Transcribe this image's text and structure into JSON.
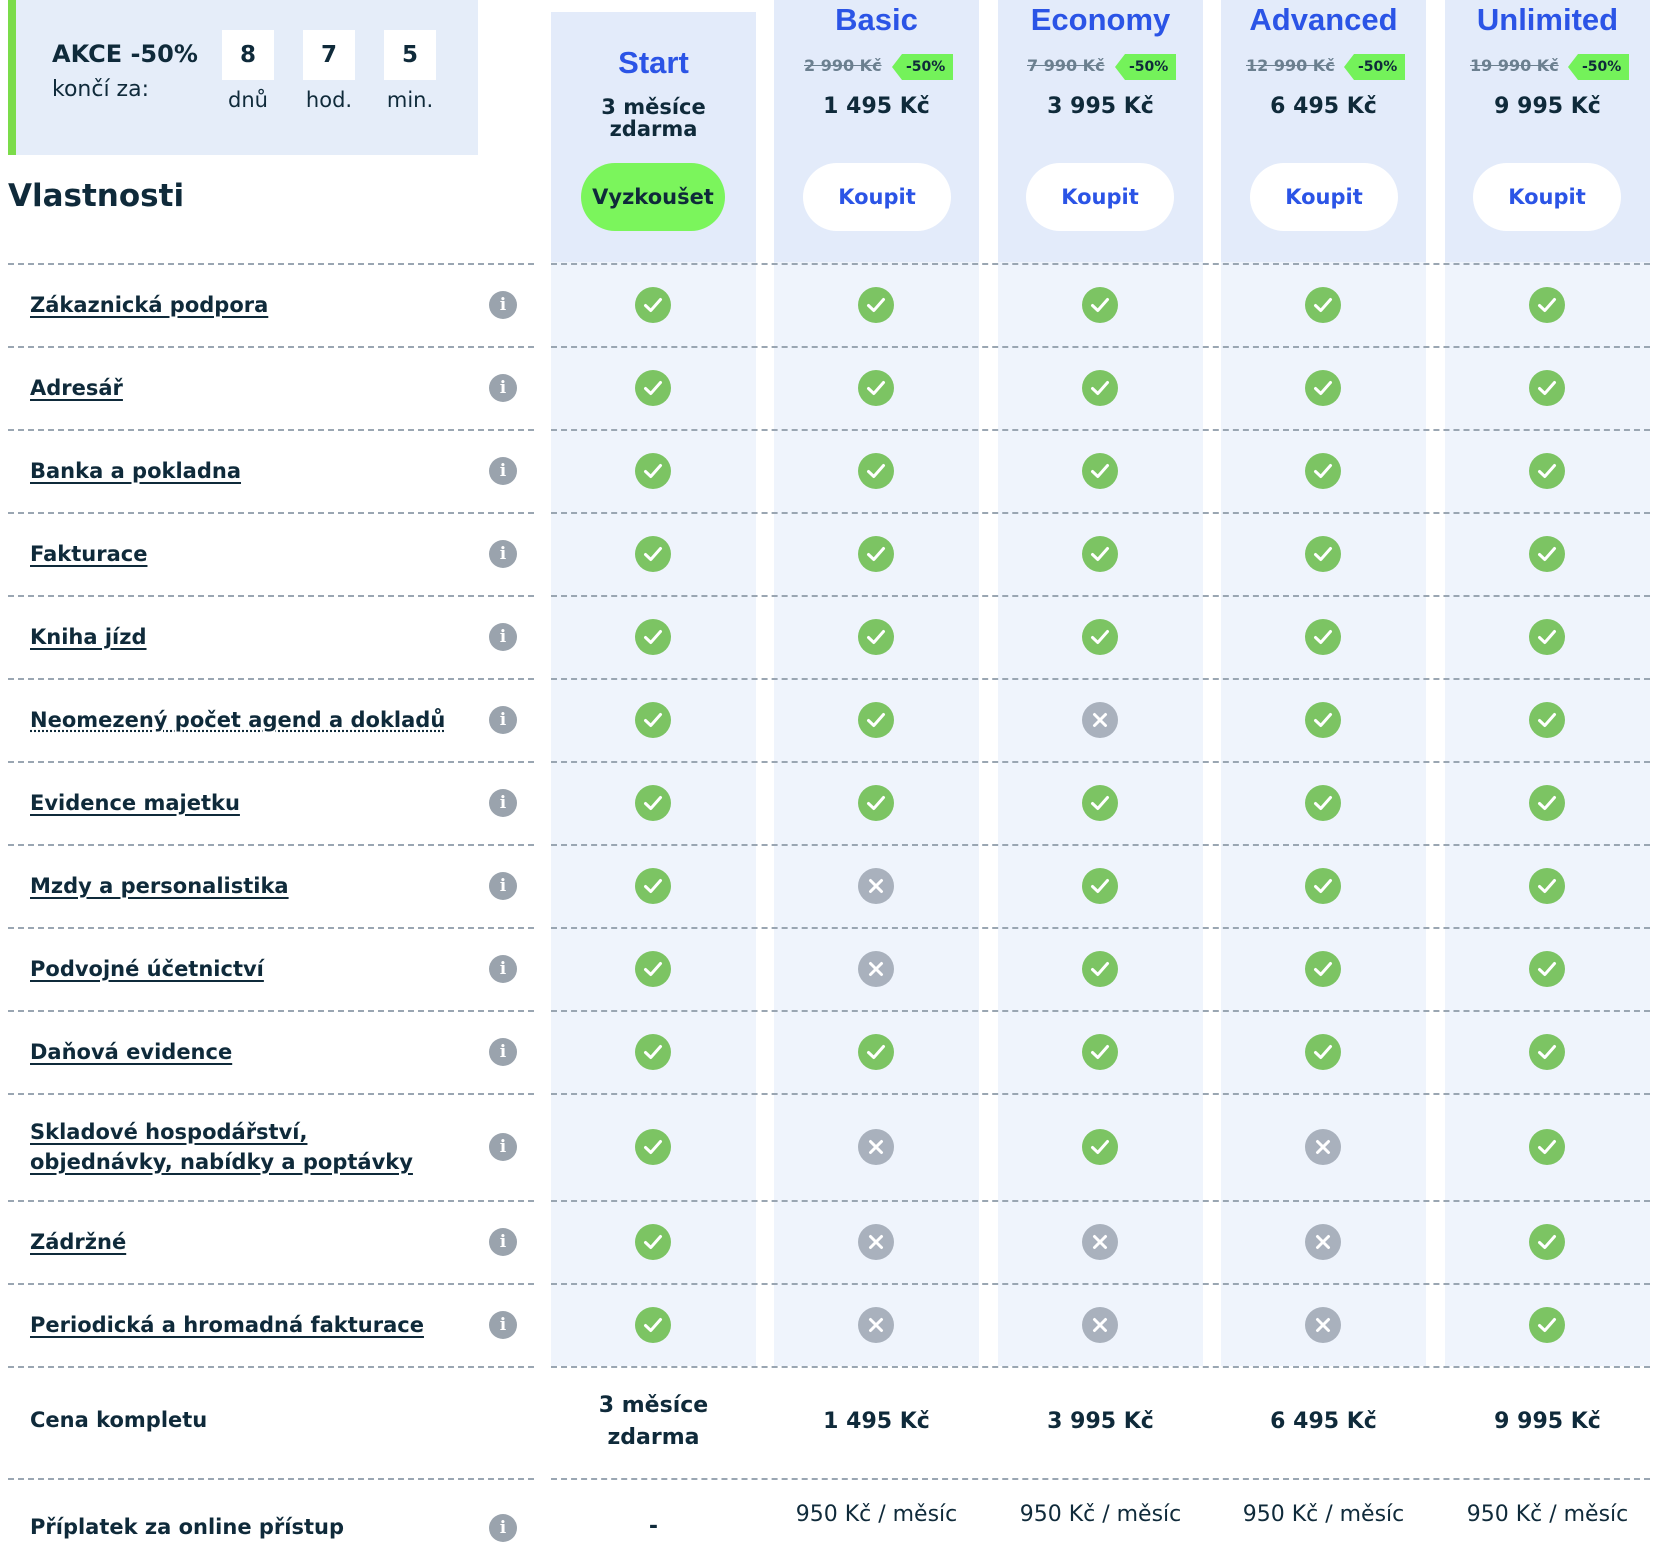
{
  "promo": {
    "title": "AKCE -50%",
    "subtitle": "končí za:",
    "countdown": [
      {
        "value": "8",
        "unit": "dnů"
      },
      {
        "value": "7",
        "unit": "hod."
      },
      {
        "value": "5",
        "unit": "min."
      }
    ]
  },
  "features_heading": "Vlastnosti",
  "plans": [
    {
      "name": "Start",
      "free_line1": "3 měsíce",
      "free_line2": "zdarma",
      "button": "Vyzkoušet",
      "highlight": true
    },
    {
      "name": "Basic",
      "old_price": "2 990 Kč",
      "discount": "-50%",
      "price": "1 495 Kč",
      "button": "Koupit"
    },
    {
      "name": "Economy",
      "old_price": "7 990 Kč",
      "discount": "-50%",
      "price": "3 995 Kč",
      "button": "Koupit"
    },
    {
      "name": "Advanced",
      "old_price": "12 990 Kč",
      "discount": "-50%",
      "price": "6 495 Kč",
      "button": "Koupit"
    },
    {
      "name": "Unlimited",
      "old_price": "19 990 Kč",
      "discount": "-50%",
      "price": "9 995 Kč",
      "button": "Koupit"
    }
  ],
  "features": [
    {
      "label": "Zákaznická podpora",
      "availability": [
        true,
        true,
        true,
        true,
        true
      ]
    },
    {
      "label": "Adresář",
      "availability": [
        true,
        true,
        true,
        true,
        true
      ]
    },
    {
      "label": "Banka a pokladna",
      "availability": [
        true,
        true,
        true,
        true,
        true
      ]
    },
    {
      "label": "Fakturace",
      "availability": [
        true,
        true,
        true,
        true,
        true
      ]
    },
    {
      "label": "Kniha jízd",
      "availability": [
        true,
        true,
        true,
        true,
        true
      ]
    },
    {
      "label": "Neomezený počet agend a dokladů",
      "availability": [
        true,
        true,
        false,
        true,
        true
      ]
    },
    {
      "label": "Evidence majetku",
      "availability": [
        true,
        true,
        true,
        true,
        true
      ]
    },
    {
      "label": "Mzdy a personalistika",
      "availability": [
        true,
        false,
        true,
        true,
        true
      ]
    },
    {
      "label": "Podvojné účetnictví",
      "availability": [
        true,
        false,
        true,
        true,
        true
      ]
    },
    {
      "label": "Daňová evidence",
      "availability": [
        true,
        true,
        true,
        true,
        true
      ]
    },
    {
      "label": "Skladové hospodářství, objednávky, nabídky a poptávky",
      "availability": [
        true,
        false,
        true,
        false,
        true
      ]
    },
    {
      "label": "Zádržné",
      "availability": [
        true,
        false,
        false,
        false,
        true
      ]
    },
    {
      "label": "Periodická a hromadná fakturace",
      "availability": [
        true,
        false,
        false,
        false,
        true
      ]
    }
  ],
  "summary": {
    "total_label": "Cena kompletu",
    "total_values": [
      "3 měsíce zdarma",
      "1 495 Kč",
      "3 995 Kč",
      "6 495 Kč",
      "9 995 Kč"
    ],
    "online_label": "Příplatek za online přístup",
    "online_values": [
      "-",
      "950 Kč / měsíc",
      "950 Kč / měsíc",
      "950 Kč / měsíc",
      "950 Kč / měsíc"
    ]
  }
}
